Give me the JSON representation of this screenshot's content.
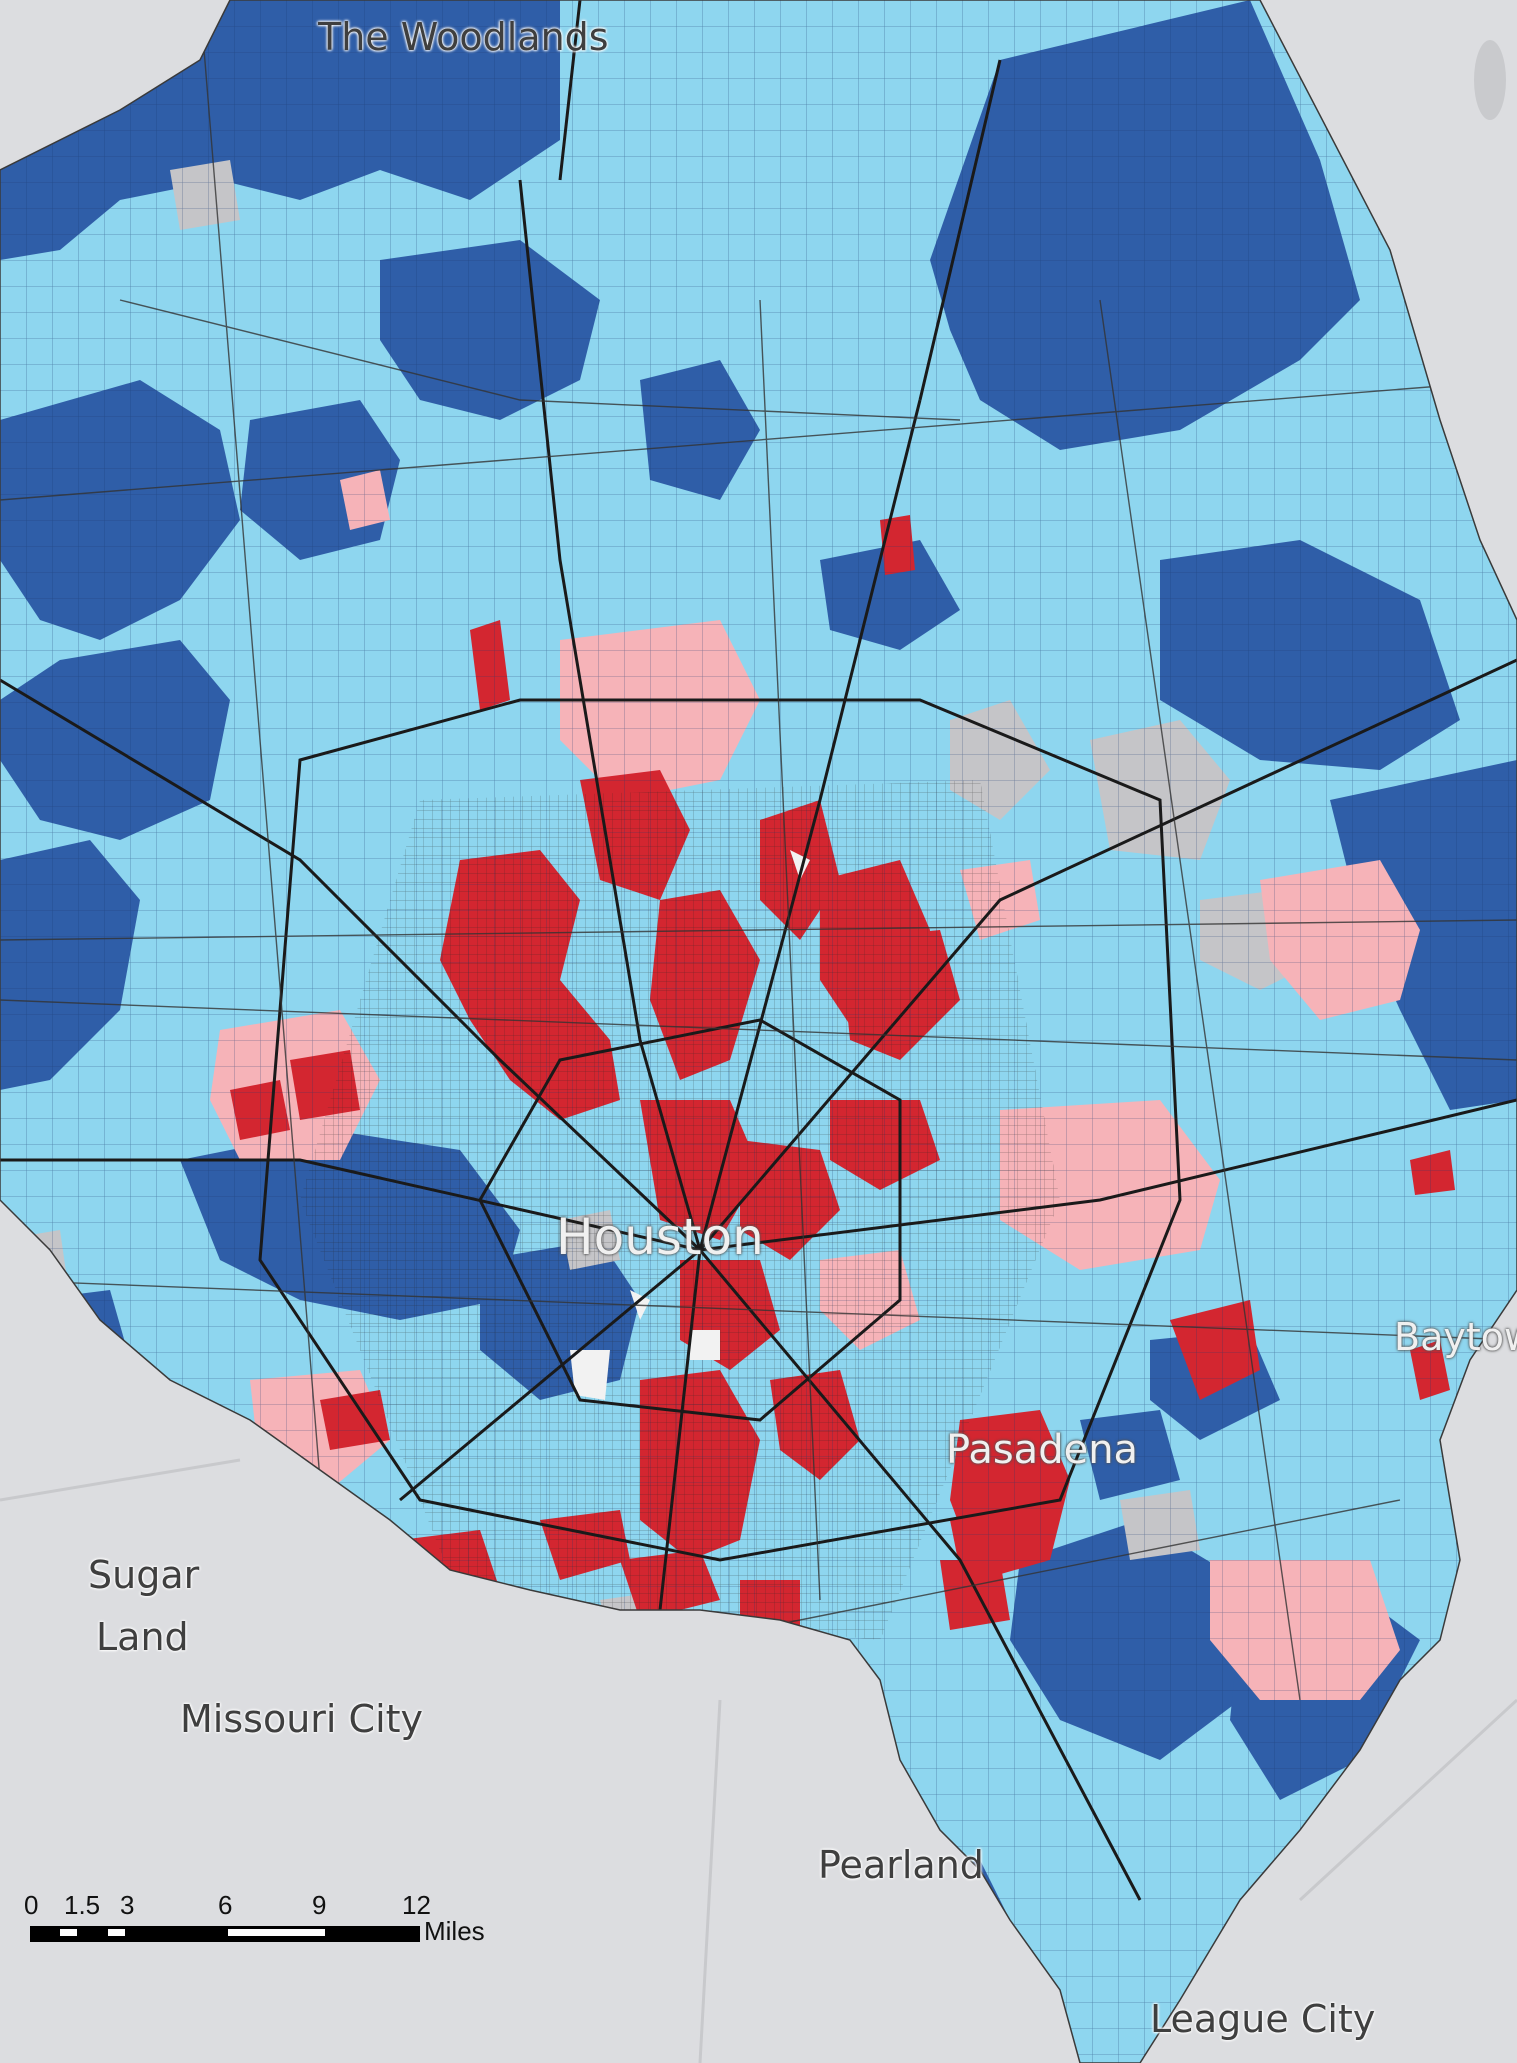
{
  "places": {
    "woodlands": "The Woodlands",
    "houston": "Houston",
    "sugar_land_1": "Sugar",
    "sugar_land_2": "Land",
    "missouri_city": "Missouri City",
    "pasadena": "Pasadena",
    "baytown": "Baytow",
    "pearland": "Pearland",
    "league_city": "League City"
  },
  "scale_bar": {
    "ticks": [
      "0",
      "1.5",
      "3",
      "6",
      "9",
      "12"
    ],
    "unit": "Miles"
  },
  "colors": {
    "background": "#dcdde0",
    "dark_blue": "#2f5ea8",
    "light_blue": "#8ed6ef",
    "pink": "#f6b3b8",
    "red": "#d32630",
    "gray": "#c5c5c8",
    "road": "#222222"
  }
}
